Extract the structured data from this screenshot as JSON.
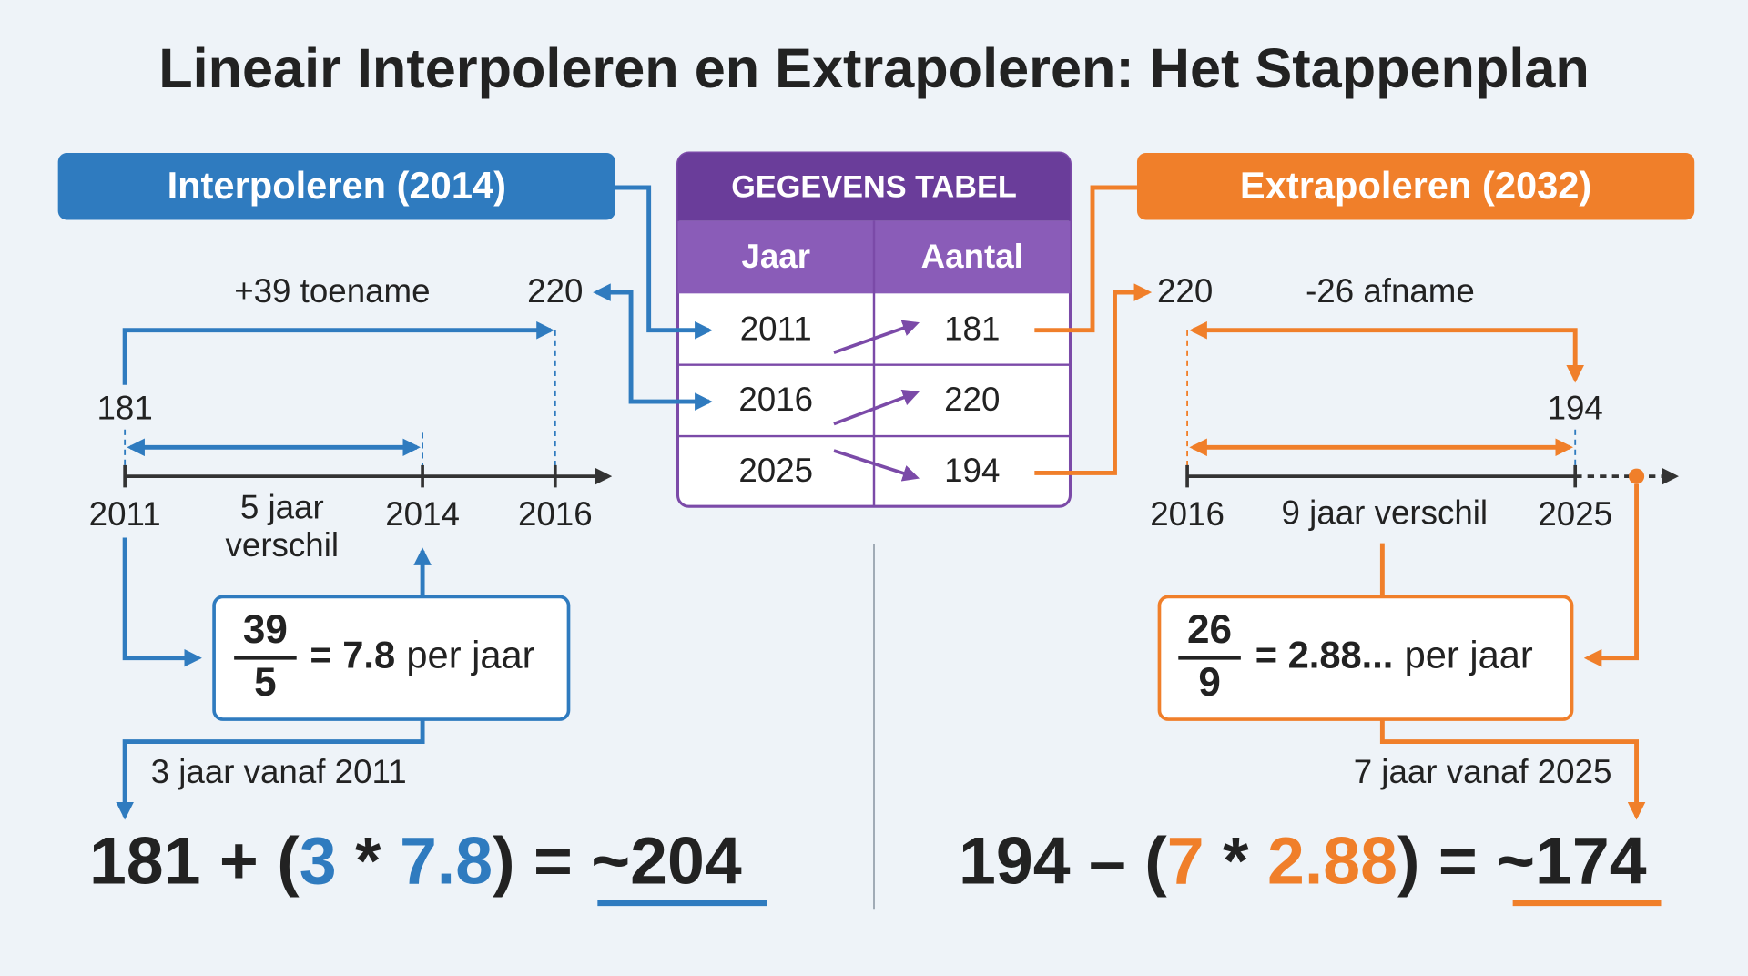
{
  "title": "Lineair Interpoleren en Extrapoleren: Het Stappenplan",
  "interpolation": {
    "header": "Interpoleren (2014)",
    "increase_label": "+39 toename",
    "top_value": "220",
    "start_value": "181",
    "axis_labels": [
      "2011",
      "2014",
      "2016"
    ],
    "gap_label": [
      "5 jaar",
      "verschil"
    ],
    "fraction": {
      "numerator": "39",
      "denominator": "5"
    },
    "rate": "= 7.8",
    "rate_unit": "per jaar",
    "step_label": "3 jaar vanaf 2011",
    "formula": [
      "181 + (",
      "3",
      " * ",
      "7.8",
      ") = ",
      "~204"
    ]
  },
  "table": {
    "title": "GEGEVENS TABEL",
    "headers": [
      "Jaar",
      "Aantal"
    ],
    "rows": [
      [
        "2011",
        "181"
      ],
      [
        "2016",
        "220"
      ],
      [
        "2025",
        "194"
      ]
    ]
  },
  "extrapolation": {
    "header": "Extrapoleren (2032)",
    "decrease_label": "-26 afname",
    "top_value": "220",
    "end_value": "194",
    "axis_labels": [
      "2016",
      "2025"
    ],
    "gap_label": "9 jaar verschil",
    "fraction": {
      "numerator": "26",
      "denominator": "9"
    },
    "rate": "= 2.88...",
    "rate_unit": "per jaar",
    "step_label": "7 jaar vanaf 2025",
    "formula": [
      "194 – (",
      "7",
      " * ",
      "2.88",
      ") = ",
      "~174"
    ]
  }
}
